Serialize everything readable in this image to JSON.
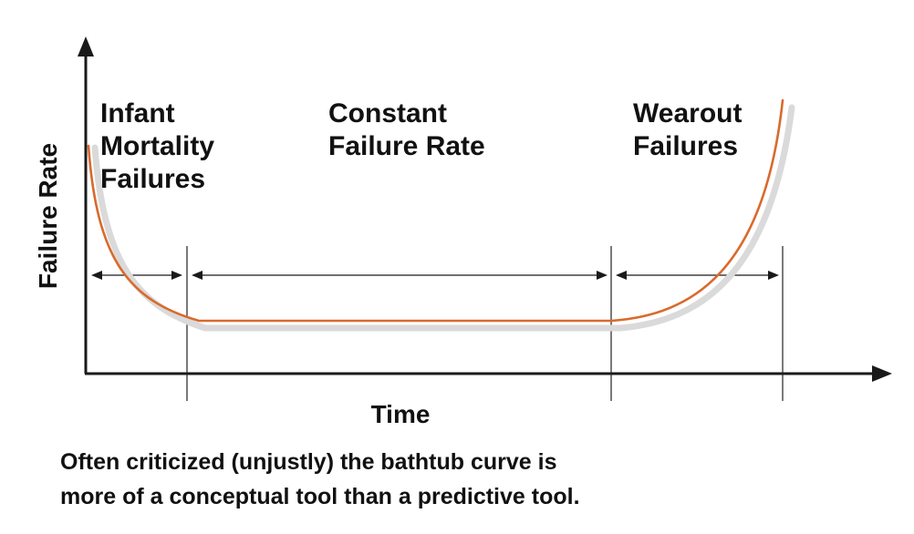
{
  "axes": {
    "y_label": "Failure Rate",
    "x_label": "Time"
  },
  "regions": [
    {
      "id": "infant",
      "lines": [
        "Infant",
        "Mortality",
        "Failures"
      ]
    },
    {
      "id": "constant",
      "lines": [
        "Constant",
        "Failure Rate"
      ]
    },
    {
      "id": "wearout",
      "lines": [
        "Wearout",
        "Failures"
      ]
    }
  ],
  "caption": {
    "lines": [
      "Often criticized (unjustly) the bathtub curve is",
      "more of a conceptual tool than a predictive tool."
    ]
  },
  "colors": {
    "curve": "#d96a2c",
    "curve_shadow": "#dadada",
    "ink": "#1a1a1a"
  }
}
